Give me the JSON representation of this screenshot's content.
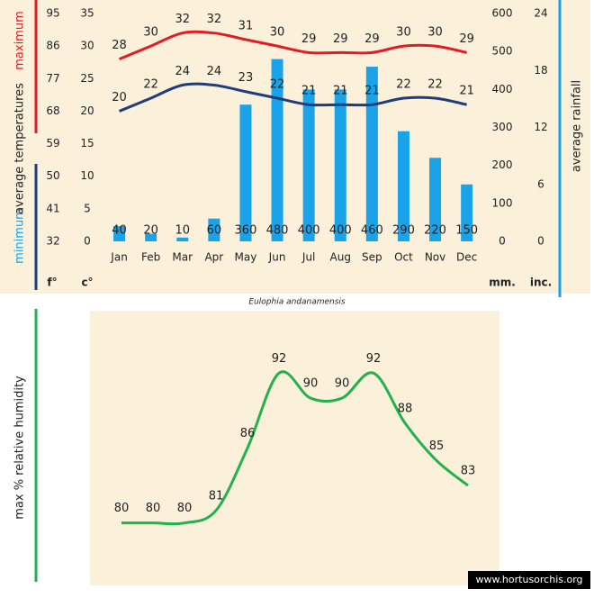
{
  "chart_data": [
    {
      "type": "combo",
      "title": "Eulophia andanamensis",
      "categories": [
        "Jan",
        "Feb",
        "Mar",
        "Apr",
        "May",
        "Jun",
        "Jul",
        "Aug",
        "Sep",
        "Oct",
        "Nov",
        "Dec"
      ],
      "series": [
        {
          "name": "average rainfall",
          "type": "bar",
          "axis": "y2",
          "color": "#1aa3e8",
          "values": [
            40,
            20,
            10,
            60,
            360,
            480,
            400,
            400,
            460,
            290,
            220,
            150
          ]
        },
        {
          "name": "maximum",
          "type": "line",
          "color": "#e31b23",
          "values": [
            28,
            30,
            32,
            32,
            31,
            30,
            29,
            29,
            29,
            30,
            30,
            29
          ]
        },
        {
          "name": "minimum",
          "type": "line",
          "color": "#1f3d7a",
          "values": [
            20,
            22,
            24,
            24,
            23,
            22,
            21,
            21,
            21,
            22,
            22,
            21
          ]
        }
      ],
      "ylim": [
        0,
        35
      ],
      "yticks": [
        0,
        5,
        10,
        15,
        20,
        25,
        30,
        35
      ],
      "y3lim": [
        32,
        95
      ],
      "y3ticks": [
        32,
        41,
        50,
        59,
        68,
        77,
        86,
        95
      ],
      "y2lim": [
        0,
        600
      ],
      "y2ticks": [
        0,
        100,
        200,
        300,
        400,
        500,
        600
      ],
      "y4lim": [
        0,
        24
      ],
      "y4ticks": [
        0,
        6,
        12,
        18,
        24
      ],
      "ylabel_min": "minimum",
      "ylabel_mid": "average  temperatures",
      "ylabel_max": "maximum",
      "y2label": "average rainfall",
      "unit_f": "f°",
      "unit_c": "c°",
      "unit_mm": "mm.",
      "unit_in": "inc."
    },
    {
      "type": "line",
      "ylabel": "max % relative humidity",
      "series": [
        {
          "name": "max % relative humidity",
          "color": "#22b14c",
          "values": [
            80,
            80,
            80,
            81,
            86,
            92,
            90,
            90,
            92,
            88,
            85,
            83
          ]
        }
      ],
      "ylim": [
        75,
        97
      ]
    }
  ],
  "watermark": "www.hortusorchis.org"
}
